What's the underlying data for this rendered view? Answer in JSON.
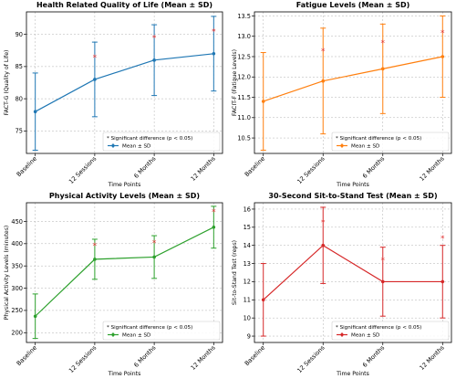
{
  "chart_data": [
    {
      "type": "line",
      "title": "Health Related Quality of Life (Mean ± SD)",
      "xlabel": "Time Points",
      "ylabel": "FACT-G (Quality of Life)",
      "categories": [
        "Baseline",
        "12 Sessions",
        "6 Months",
        "12 Months"
      ],
      "color": "#1f77b4",
      "ylim": [
        71.5,
        93.5
      ],
      "yticks": [
        75,
        80,
        85,
        90
      ],
      "series": [
        {
          "name": "Mean ± SD",
          "values": [
            78,
            83,
            86,
            87
          ],
          "errors": [
            6,
            5.8,
            5.5,
            5.8
          ]
        }
      ],
      "significant_markers": [
        null,
        86.5,
        89.5,
        90.5
      ],
      "legend": {
        "position": "lower-right",
        "entries": [
          "* Significant difference (p < 0.05)",
          "Mean ± SD"
        ]
      },
      "grid": true
    },
    {
      "type": "line",
      "title": "Fatigue Levels (Mean ± SD)",
      "xlabel": "Time Points",
      "ylabel": "FACIT-F (Fatigue Levels)",
      "categories": [
        "Baseline",
        "12 Sessions",
        "6 Months",
        "12 Months"
      ],
      "color": "#ff7f0e",
      "ylim": [
        10.12,
        13.6
      ],
      "yticks": [
        10.5,
        11.0,
        11.5,
        12.0,
        12.5,
        13.0,
        13.5
      ],
      "series": [
        {
          "name": "Mean ± SD",
          "values": [
            11.4,
            11.9,
            12.2,
            12.5
          ],
          "errors": [
            1.2,
            1.3,
            1.1,
            1.0
          ]
        }
      ],
      "significant_markers": [
        null,
        12.65,
        12.85,
        13.1
      ],
      "legend": {
        "position": "lower-right",
        "entries": [
          "* Significant difference (p < 0.05)",
          "Mean ± SD"
        ]
      },
      "grid": true
    },
    {
      "type": "line",
      "title": "Physical Activity Levels (Mean ± SD)",
      "xlabel": "Time Points",
      "ylabel": "Physical Activity Levels (minutes)",
      "categories": [
        "Baseline",
        "12 Sessions",
        "6 Months",
        "12 Months"
      ],
      "color": "#2ca02c",
      "ylim": [
        178,
        492
      ],
      "yticks": [
        200,
        250,
        300,
        350,
        400,
        450
      ],
      "series": [
        {
          "name": "Mean ± SD",
          "values": [
            237,
            365,
            370,
            437
          ],
          "errors": [
            50,
            45,
            48,
            47
          ]
        }
      ],
      "significant_markers": [
        null,
        397,
        403,
        472
      ],
      "legend": {
        "position": "lower-right",
        "entries": [
          "* Significant difference (p < 0.05)",
          "Mean ± SD"
        ]
      },
      "grid": true
    },
    {
      "type": "line",
      "title": "30-Second Sit-to-Stand Test (Mean ± SD)",
      "xlabel": "Time Points",
      "ylabel": "Sit-to-Stand Test (reps)",
      "categories": [
        "Baseline",
        "12 Sessions",
        "6 Months",
        "12 Months"
      ],
      "color": "#d62728",
      "ylim": [
        8.65,
        16.35
      ],
      "yticks": [
        9,
        10,
        11,
        12,
        13,
        14,
        15,
        16
      ],
      "series": [
        {
          "name": "Mean ± SD",
          "values": [
            11,
            14,
            12,
            12
          ],
          "errors": [
            2,
            2.1,
            1.9,
            2
          ]
        }
      ],
      "significant_markers": [
        null,
        15.3,
        13.2,
        14.4
      ],
      "legend": {
        "position": "lower-right",
        "entries": [
          "* Significant difference (p < 0.05)",
          "Mean ± SD"
        ]
      },
      "grid": true
    }
  ]
}
